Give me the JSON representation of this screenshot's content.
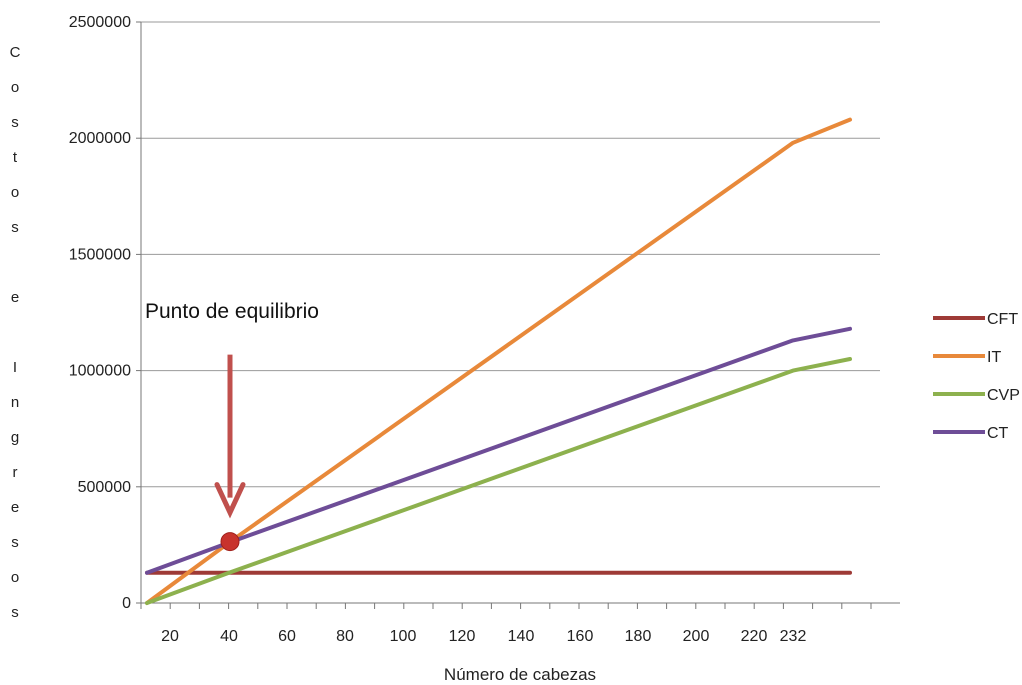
{
  "chart_data": {
    "type": "line",
    "title": "",
    "xlabel": "Número de cabezas",
    "ylabel": "Costos e Ingresos",
    "ylim": [
      0,
      2500000
    ],
    "yticks": [
      0,
      500000,
      1000000,
      1500000,
      2000000,
      2500000
    ],
    "ytick_labels": [
      "0",
      "500000",
      "1000000",
      "1500000",
      "2000000",
      "2500000"
    ],
    "categories": [
      "20",
      "40",
      "60",
      "80",
      "100",
      "120",
      "140",
      "160",
      "180",
      "200",
      "220",
      "232"
    ],
    "x_positions": [
      10,
      20,
      40,
      60,
      80,
      100,
      120,
      140,
      160,
      180,
      200,
      220,
      232,
      245
    ],
    "grid": true,
    "legend_position": "right",
    "series": [
      {
        "name": "CFT",
        "color": "#9e3a36",
        "points": [
          [
            10,
            130000
          ],
          [
            245,
            130000
          ]
        ]
      },
      {
        "name": "IT",
        "color": "#e8893a",
        "points": [
          [
            10,
            0
          ],
          [
            40,
            260000
          ],
          [
            232,
            1980000
          ],
          [
            245,
            2080000
          ]
        ]
      },
      {
        "name": "CVP",
        "color": "#8db14e",
        "points": [
          [
            10,
            0
          ],
          [
            40,
            130000
          ],
          [
            232,
            1000000
          ],
          [
            245,
            1050000
          ]
        ]
      },
      {
        "name": "CT",
        "color": "#6e4d97",
        "points": [
          [
            10,
            130000
          ],
          [
            40,
            260000
          ],
          [
            232,
            1130000
          ],
          [
            245,
            1180000
          ]
        ]
      }
    ],
    "annotation": {
      "text": "Punto de equilibrio",
      "x": 40,
      "y": 260000,
      "marker_color": "#c8332d",
      "arrow_color": "#c0504d"
    }
  }
}
